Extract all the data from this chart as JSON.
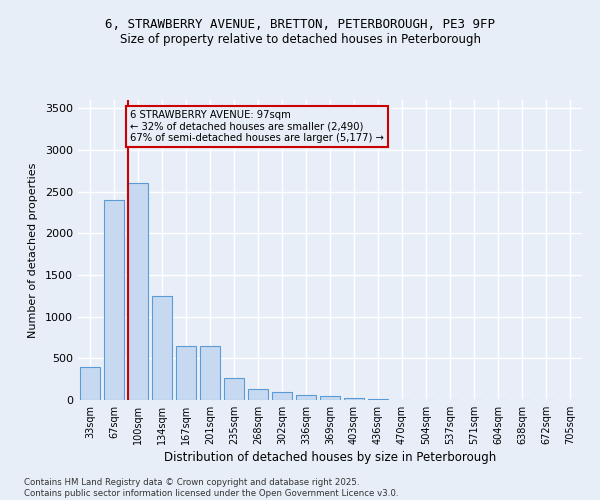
{
  "title1": "6, STRAWBERRY AVENUE, BRETTON, PETERBOROUGH, PE3 9FP",
  "title2": "Size of property relative to detached houses in Peterborough",
  "xlabel": "Distribution of detached houses by size in Peterborough",
  "ylabel": "Number of detached properties",
  "categories": [
    "33sqm",
    "67sqm",
    "100sqm",
    "134sqm",
    "167sqm",
    "201sqm",
    "235sqm",
    "268sqm",
    "302sqm",
    "336sqm",
    "369sqm",
    "403sqm",
    "436sqm",
    "470sqm",
    "504sqm",
    "537sqm",
    "571sqm",
    "604sqm",
    "638sqm",
    "672sqm",
    "705sqm"
  ],
  "values": [
    400,
    2400,
    2600,
    1250,
    650,
    650,
    260,
    130,
    100,
    65,
    50,
    28,
    10,
    6,
    3,
    2,
    1,
    1,
    0,
    0,
    0
  ],
  "bar_color": "#c6d9f0",
  "bar_edge_color": "#5b9bd5",
  "vline_color": "#cc0000",
  "annotation_text": "6 STRAWBERRY AVENUE: 97sqm\n← 32% of detached houses are smaller (2,490)\n67% of semi-detached houses are larger (5,177) →",
  "annotation_box_color": "#cc0000",
  "ylim": [
    0,
    3600
  ],
  "yticks": [
    0,
    500,
    1000,
    1500,
    2000,
    2500,
    3000,
    3500
  ],
  "footer1": "Contains HM Land Registry data © Crown copyright and database right 2025.",
  "footer2": "Contains public sector information licensed under the Open Government Licence v3.0.",
  "bg_color": "#e8eef8",
  "grid_color": "#ffffff"
}
